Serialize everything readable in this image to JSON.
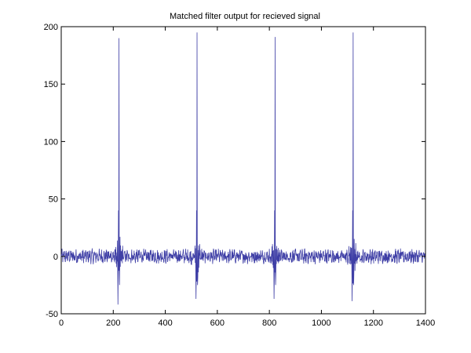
{
  "chart_data": {
    "type": "line",
    "title": "Matched filter output for recieved signal",
    "xlabel": "",
    "ylabel": "",
    "xlim": [
      0,
      1400
    ],
    "ylim": [
      -50,
      200
    ],
    "xticks": [
      "0",
      "200",
      "400",
      "600",
      "800",
      "1000",
      "1200",
      "1400"
    ],
    "yticks": [
      "-50",
      "0",
      "50",
      "100",
      "150",
      "200"
    ],
    "grid": false,
    "line_color": "#3f3fa6",
    "peaks": [
      {
        "x": 222,
        "y": 190,
        "min": -42
      },
      {
        "x": 522,
        "y": 195,
        "min": -37
      },
      {
        "x": 822,
        "y": 191,
        "min": -37
      },
      {
        "x": 1122,
        "y": 195,
        "min": -39
      }
    ],
    "series": [
      {
        "values_description": "Noisy matched-filter response around 0 with four tall pulses"
      }
    ]
  }
}
